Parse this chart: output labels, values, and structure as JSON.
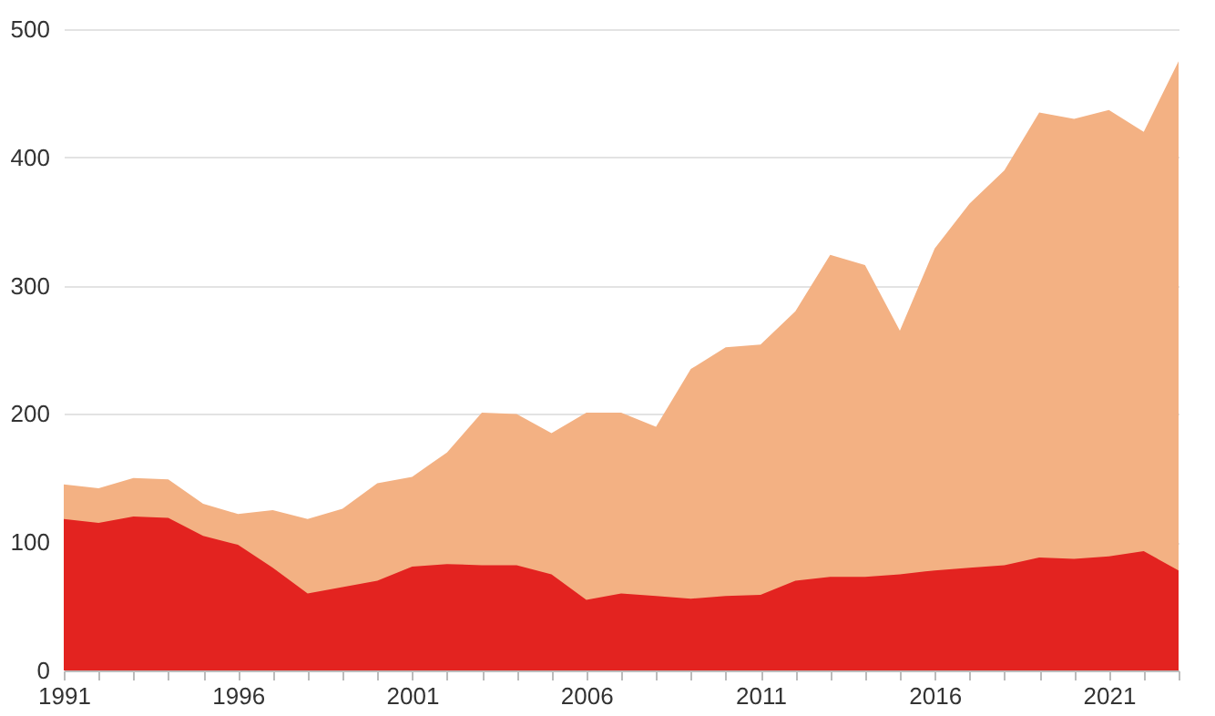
{
  "chart_data": {
    "type": "area",
    "x": [
      1991,
      1992,
      1993,
      1994,
      1995,
      1996,
      1997,
      1998,
      1999,
      2000,
      2001,
      2002,
      2003,
      2004,
      2005,
      2006,
      2007,
      2008,
      2009,
      2010,
      2011,
      2012,
      2013,
      2014,
      2015,
      2016,
      2017,
      2018,
      2019,
      2020,
      2021,
      2022,
      2023
    ],
    "series": [
      {
        "color": "#f3b183",
        "values": [
          145,
          142,
          150,
          149,
          130,
          122,
          125,
          118,
          126,
          146,
          151,
          170,
          201,
          200,
          185,
          201,
          201,
          190,
          235,
          252,
          254,
          280,
          324,
          316,
          265,
          329,
          364,
          390,
          435,
          430,
          437,
          420,
          475
        ]
      },
      {
        "color": "#e32320",
        "values": [
          118,
          115,
          120,
          119,
          105,
          98,
          80,
          60,
          65,
          70,
          81,
          83,
          82,
          82,
          75,
          55,
          60,
          58,
          56,
          58,
          59,
          70,
          73,
          73,
          75,
          78,
          80,
          82,
          88,
          87,
          89,
          93,
          78
        ]
      }
    ],
    "xlim": [
      1991,
      2023
    ],
    "xticks": [
      1991,
      {
        "value": 1992,
        "label": null
      },
      {
        "value": 1993,
        "label": null
      },
      {
        "value": 1994,
        "label": null
      },
      {
        "value": 1995,
        "label": null
      },
      1996,
      {
        "value": 1997,
        "label": null
      },
      {
        "value": 1998,
        "label": null
      },
      {
        "value": 1999,
        "label": null
      },
      {
        "value": 2000,
        "label": null
      },
      2001,
      {
        "value": 2002,
        "label": null
      },
      {
        "value": 2003,
        "label": null
      },
      {
        "value": 2004,
        "label": null
      },
      {
        "value": 2005,
        "label": null
      },
      2006,
      {
        "value": 2007,
        "label": null
      },
      {
        "value": 2008,
        "label": null
      },
      {
        "value": 2009,
        "label": null
      },
      {
        "value": 2010,
        "label": null
      },
      2011,
      {
        "value": 2012,
        "label": null
      },
      {
        "value": 2013,
        "label": null
      },
      {
        "value": 2014,
        "label": null
      },
      {
        "value": 2015,
        "label": null
      },
      2016,
      {
        "value": 2017,
        "label": null
      },
      {
        "value": 2018,
        "label": null
      },
      {
        "value": 2019,
        "label": null
      },
      {
        "value": 2020,
        "label": null
      },
      2021,
      {
        "value": 2022,
        "label": null
      },
      {
        "value": 2023,
        "label": null
      }
    ],
    "ylim": [
      0,
      500
    ],
    "yticks": [
      0,
      100,
      200,
      300,
      400,
      500
    ],
    "grid": "y"
  }
}
